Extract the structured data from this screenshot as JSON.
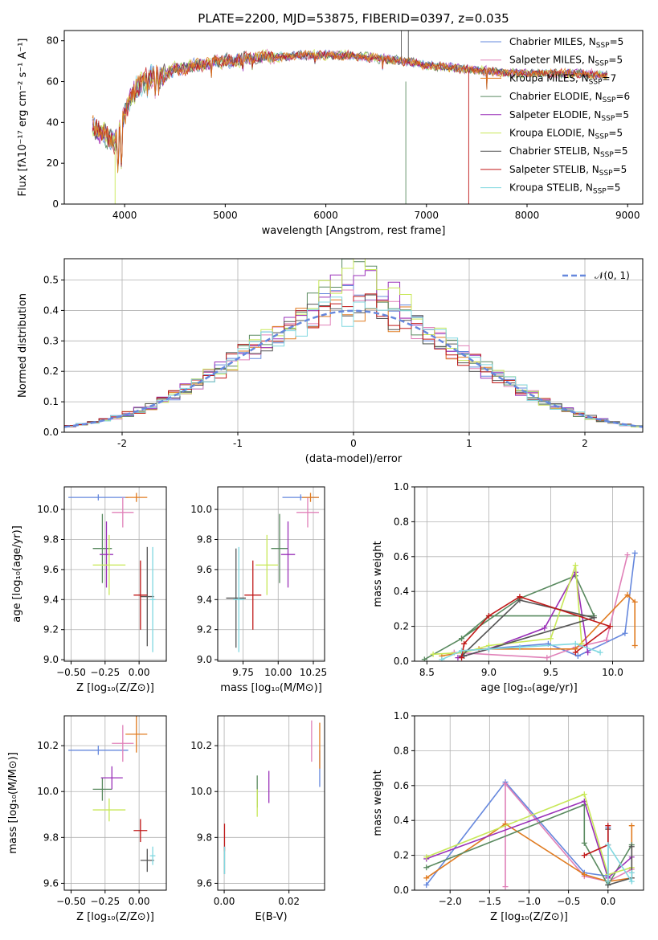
{
  "figure": {
    "title": "PLATE=2200, MJD=53875, FIBERID=0397, z=0.035"
  },
  "colors": {
    "Chabrier MILES": "#6688dd",
    "Salpeter MILES": "#e080b8",
    "Kroupa MILES": "#e07b20",
    "Chabrier ELODIE": "#5a8a60",
    "Salpeter ELODIE": "#9a30b8",
    "Kroupa ELODIE": "#c8e858",
    "Chabrier STELIB": "#555555",
    "Salpeter STELIB": "#c01818",
    "Kroupa STELIB": "#80d8e0"
  },
  "chart_data": [
    {
      "id": "spectrum",
      "type": "line",
      "xlabel": "wavelength [Angstrom, rest frame]",
      "ylabel": "Flux [fλ10⁻¹⁷ erg cm⁻² s⁻¹ A⁻¹]",
      "xlim": [
        3400,
        9150
      ],
      "ylim": [
        0,
        85
      ],
      "xticks": [
        4000,
        5000,
        6000,
        7000,
        8000,
        9000
      ],
      "yticks": [
        0,
        20,
        40,
        60,
        80
      ],
      "legend_position": "top-right",
      "legend": [
        {
          "label": "Chabrier MILES, N",
          "sub": "SSP",
          "suffix": "=5",
          "model": "Chabrier MILES"
        },
        {
          "label": "Salpeter MILES, N",
          "sub": "SSP",
          "suffix": "=5",
          "model": "Salpeter MILES"
        },
        {
          "label": "Kroupa MILES, N",
          "sub": "SSP",
          "suffix": "=7",
          "model": "Kroupa MILES"
        },
        {
          "label": "Chabrier ELODIE, N",
          "sub": "SSP",
          "suffix": "=6",
          "model": "Chabrier ELODIE"
        },
        {
          "label": "Salpeter ELODIE, N",
          "sub": "SSP",
          "suffix": "=5",
          "model": "Salpeter ELODIE"
        },
        {
          "label": "Kroupa ELODIE, N",
          "sub": "SSP",
          "suffix": "=5",
          "model": "Kroupa ELODIE"
        },
        {
          "label": "Chabrier STELIB, N",
          "sub": "SSP",
          "suffix": "=5",
          "model": "Chabrier STELIB"
        },
        {
          "label": "Salpeter STELIB, N",
          "sub": "SSP",
          "suffix": "=5",
          "model": "Salpeter STELIB"
        },
        {
          "label": "Kroupa STELIB, N",
          "sub": "SSP",
          "suffix": "=5",
          "model": "Kroupa STELIB"
        }
      ],
      "continuum": {
        "x": [
          3680,
          3800,
          3900,
          4000,
          4100,
          4200,
          4300,
          4400,
          4500,
          4600,
          4700,
          4800,
          4900,
          5000,
          5200,
          5400,
          5600,
          5800,
          6000,
          6200,
          6400,
          6600,
          6800,
          7000,
          7200,
          7400,
          7600,
          7800,
          8000,
          8200,
          8400,
          8600,
          8800
        ],
        "y": [
          38,
          34,
          30,
          44,
          56,
          60,
          64,
          63,
          66,
          66,
          68,
          68,
          70,
          70,
          71,
          72,
          72,
          73,
          73,
          73,
          72,
          71,
          70,
          68,
          67,
          66,
          65,
          64,
          64,
          64,
          64,
          64,
          63
        ]
      },
      "absorption": [
        {
          "x": 3934,
          "y": 14
        },
        {
          "x": 3969,
          "y": 16
        },
        {
          "x": 4102,
          "y": 48
        },
        {
          "x": 4227,
          "y": 52
        },
        {
          "x": 4305,
          "y": 50
        },
        {
          "x": 4340,
          "y": 52
        },
        {
          "x": 4861,
          "y": 60
        },
        {
          "x": 5175,
          "y": 62
        },
        {
          "x": 5270,
          "y": 66
        },
        {
          "x": 5895,
          "y": 66
        },
        {
          "x": 6563,
          "y": 65
        },
        {
          "x": 7600,
          "y": 58
        },
        {
          "x": 8542,
          "y": 60
        },
        {
          "x": 8662,
          "y": 60
        }
      ],
      "artifacts": [
        {
          "model": "Kroupa ELODIE",
          "x": 3905,
          "from": 30,
          "to": 0
        },
        {
          "model": "Chabrier ELODIE",
          "x": 6795,
          "from": 60,
          "to": 0
        },
        {
          "model": "Chabrier STELIB",
          "x": 6750,
          "from": 70,
          "to": 85
        },
        {
          "model": "Chabrier STELIB",
          "x": 6820,
          "from": 70,
          "to": 85
        },
        {
          "model": "Salpeter STELIB",
          "x": 7420,
          "from": 65,
          "to": 0
        }
      ]
    },
    {
      "id": "residuals",
      "type": "step",
      "xlabel": "(data-model)/error",
      "ylabel": "Normed distribution",
      "xlim": [
        -2.5,
        2.5
      ],
      "ylim": [
        0,
        0.57
      ],
      "xticks": [
        -2,
        -1,
        0,
        1,
        2
      ],
      "yticks": [
        0.0,
        0.1,
        0.2,
        0.3,
        0.4,
        0.5
      ],
      "bin_width": 0.1,
      "legend_position": "top-right",
      "legend": [
        {
          "label": "𝒩(0, 1)",
          "model": "Chabrier MILES"
        }
      ],
      "peaks": {
        "Chabrier MILES": 0.44,
        "Salpeter MILES": 0.42,
        "Kroupa MILES": 0.41,
        "Chabrier ELODIE": 0.52,
        "Salpeter ELODIE": 0.54,
        "Kroupa ELODIE": 0.53,
        "Chabrier STELIB": 0.42,
        "Salpeter STELIB": 0.43,
        "Kroupa STELIB": 0.4
      }
    },
    {
      "id": "age-Z",
      "type": "errorbar",
      "xlabel": "Z [log₁₀(Z/Z⊙)]",
      "ylabel": "age  [log₁₀(age/yr)]",
      "xlim": [
        -0.55,
        0.2
      ],
      "ylim": [
        8.99,
        10.15
      ],
      "xticks": [
        -0.5,
        -0.25,
        0.0
      ],
      "xticklabels": [
        "−0.50",
        "−0.25",
        "0.00"
      ],
      "yticks": [
        9.0,
        9.2,
        9.4,
        9.6,
        9.8,
        10.0
      ],
      "points": [
        {
          "model": "Chabrier MILES",
          "x": -0.3,
          "xerr": 0.22,
          "y": 10.08,
          "yerr": 0.02
        },
        {
          "model": "Salpeter MILES",
          "x": -0.12,
          "xerr": 0.08,
          "y": 9.98,
          "yerr": 0.1
        },
        {
          "model": "Kroupa MILES",
          "x": -0.02,
          "xerr": 0.08,
          "y": 10.08,
          "yerr": 0.03
        },
        {
          "model": "Chabrier ELODIE",
          "x": -0.27,
          "xerr": 0.07,
          "y": 9.74,
          "yerr": 0.23
        },
        {
          "model": "Salpeter ELODIE",
          "x": -0.24,
          "xerr": 0.05,
          "y": 9.7,
          "yerr": 0.22
        },
        {
          "model": "Kroupa ELODIE",
          "x": -0.22,
          "xerr": 0.12,
          "y": 9.63,
          "yerr": 0.2
        },
        {
          "model": "Chabrier STELIB",
          "x": 0.06,
          "xerr": 0.05,
          "y": 9.42,
          "yerr": 0.33
        },
        {
          "model": "Salpeter STELIB",
          "x": 0.01,
          "xerr": 0.05,
          "y": 9.43,
          "yerr": 0.23
        },
        {
          "model": "Kroupa STELIB",
          "x": 0.1,
          "xerr": 0.02,
          "y": 9.4,
          "yerr": 0.35
        }
      ]
    },
    {
      "id": "age-mass",
      "type": "errorbar",
      "xlabel": "mass [log₁₀(M/M⊙)]",
      "ylabel": "",
      "xlim": [
        9.57,
        10.33
      ],
      "ylim": [
        8.99,
        10.15
      ],
      "xticks": [
        9.75,
        10.0,
        10.25
      ],
      "xticklabels": [
        "9.75",
        "10.00",
        "10.25"
      ],
      "yticks": [
        9.0,
        9.2,
        9.4,
        9.6,
        9.8,
        10.0
      ],
      "points": [
        {
          "model": "Chabrier MILES",
          "x": 10.16,
          "xerr": 0.13,
          "y": 10.08,
          "yerr": 0.02
        },
        {
          "model": "Salpeter MILES",
          "x": 10.21,
          "xerr": 0.08,
          "y": 9.98,
          "yerr": 0.1
        },
        {
          "model": "Kroupa MILES",
          "x": 10.23,
          "xerr": 0.06,
          "y": 10.08,
          "yerr": 0.03
        },
        {
          "model": "Chabrier ELODIE",
          "x": 10.01,
          "xerr": 0.06,
          "y": 9.74,
          "yerr": 0.23
        },
        {
          "model": "Salpeter ELODIE",
          "x": 10.07,
          "xerr": 0.05,
          "y": 9.7,
          "yerr": 0.22
        },
        {
          "model": "Kroupa ELODIE",
          "x": 9.92,
          "xerr": 0.08,
          "y": 9.63,
          "yerr": 0.2
        },
        {
          "model": "Chabrier STELIB",
          "x": 9.7,
          "xerr": 0.07,
          "y": 9.41,
          "yerr": 0.33
        },
        {
          "model": "Salpeter STELIB",
          "x": 9.82,
          "xerr": 0.06,
          "y": 9.43,
          "yerr": 0.23
        },
        {
          "model": "Kroupa STELIB",
          "x": 9.72,
          "xerr": 0.04,
          "y": 9.4,
          "yerr": 0.35
        }
      ]
    },
    {
      "id": "weight-age",
      "type": "line",
      "xlabel": "age  [log₁₀(age/yr)]",
      "ylabel": "mass weight",
      "xlim": [
        8.4,
        10.25
      ],
      "ylim": [
        0,
        1.0
      ],
      "xticks": [
        8.5,
        9.0,
        9.5,
        10.0
      ],
      "xticklabels": [
        "8.5",
        "9.0",
        "9.5",
        "10.0"
      ],
      "yticks": [
        0.0,
        0.2,
        0.4,
        0.6,
        0.8,
        1.0
      ],
      "series": [
        {
          "model": "Chabrier MILES",
          "x": [
            8.78,
            9.48,
            9.72,
            10.1,
            10.18
          ],
          "y": [
            0.06,
            0.1,
            0.03,
            0.16,
            0.62
          ]
        },
        {
          "model": "Salpeter MILES",
          "x": [
            8.72,
            9.47,
            9.7,
            9.95,
            10.12
          ],
          "y": [
            0.05,
            0.02,
            0.08,
            0.12,
            0.61
          ]
        },
        {
          "model": "Kroupa MILES",
          "x": [
            8.62,
            8.92,
            9.7,
            10.12,
            10.18,
            10.18
          ],
          "y": [
            0.03,
            0.07,
            0.07,
            0.38,
            0.34,
            0.09
          ]
        },
        {
          "model": "Chabrier ELODIE",
          "x": [
            8.48,
            8.78,
            9.25,
            9.7,
            9.85,
            9.0,
            8.78
          ],
          "y": [
            0.01,
            0.13,
            0.36,
            0.49,
            0.26,
            0.26,
            0.13
          ]
        },
        {
          "model": "Salpeter ELODIE",
          "x": [
            8.75,
            9.0,
            9.45,
            9.7,
            9.8
          ],
          "y": [
            0.02,
            0.07,
            0.19,
            0.51,
            0.05
          ]
        },
        {
          "model": "Kroupa ELODIE",
          "x": [
            8.55,
            8.8,
            9.0,
            9.5,
            9.7,
            9.75
          ],
          "y": [
            0.04,
            0.05,
            0.09,
            0.13,
            0.55,
            0.1
          ]
        },
        {
          "model": "Chabrier STELIB",
          "x": [
            8.78,
            9.25,
            9.85,
            9.0,
            8.8
          ],
          "y": [
            0.03,
            0.35,
            0.25,
            0.07,
            0.03
          ]
        },
        {
          "model": "Salpeter STELIB",
          "x": [
            8.78,
            8.8,
            9.0,
            9.25,
            9.98,
            9.7
          ],
          "y": [
            0.02,
            0.1,
            0.26,
            0.37,
            0.2,
            0.05
          ]
        },
        {
          "model": "Kroupa STELIB",
          "x": [
            8.62,
            8.78,
            9.0,
            9.25,
            9.7,
            9.9
          ],
          "y": [
            0.01,
            0.06,
            0.07,
            0.08,
            0.1,
            0.05
          ]
        }
      ]
    },
    {
      "id": "mass-Z",
      "type": "errorbar",
      "xlabel": "Z [log₁₀(Z/Z⊙)]",
      "ylabel": "mass [log₁₀(M/M⊙)]",
      "xlim": [
        -0.55,
        0.2
      ],
      "ylim": [
        9.57,
        10.33
      ],
      "xticks": [
        -0.5,
        -0.25,
        0.0
      ],
      "xticklabels": [
        "−0.50",
        "−0.25",
        "0.00"
      ],
      "yticks": [
        9.6,
        9.8,
        10.0,
        10.2
      ],
      "points": [
        {
          "model": "Chabrier MILES",
          "x": -0.3,
          "xerr": 0.22,
          "y": 10.18,
          "yerr": 0.02
        },
        {
          "model": "Salpeter MILES",
          "x": -0.12,
          "xerr": 0.08,
          "y": 10.21,
          "yerr": 0.08
        },
        {
          "model": "Kroupa MILES",
          "x": -0.02,
          "xerr": 0.08,
          "y": 10.25,
          "yerr": 0.08
        },
        {
          "model": "Chabrier ELODIE",
          "x": -0.27,
          "xerr": 0.07,
          "y": 10.01,
          "yerr": 0.05
        },
        {
          "model": "Salpeter ELODIE",
          "x": -0.2,
          "xerr": 0.08,
          "y": 10.06,
          "yerr": 0.05
        },
        {
          "model": "Kroupa ELODIE",
          "x": -0.22,
          "xerr": 0.12,
          "y": 9.92,
          "yerr": 0.05
        },
        {
          "model": "Chabrier STELIB",
          "x": 0.06,
          "xerr": 0.05,
          "y": 9.7,
          "yerr": 0.05
        },
        {
          "model": "Salpeter STELIB",
          "x": 0.01,
          "xerr": 0.05,
          "y": 9.83,
          "yerr": 0.05
        },
        {
          "model": "Kroupa STELIB",
          "x": 0.1,
          "xerr": 0.02,
          "y": 9.72,
          "yerr": 0.04
        }
      ]
    },
    {
      "id": "mass-EBV",
      "type": "errorbar",
      "xlabel": "E(B-V)",
      "ylabel": "",
      "xlim": [
        -0.002,
        0.031
      ],
      "ylim": [
        9.57,
        10.33
      ],
      "xticks": [
        0.0,
        0.02
      ],
      "xticklabels": [
        "0.00",
        "0.02"
      ],
      "yticks": [
        9.6,
        9.8,
        10.0,
        10.2
      ],
      "points": [
        {
          "model": "Chabrier MILES",
          "x": 0.0295,
          "xerr": 0,
          "y": 10.1,
          "yerr": 0.08
        },
        {
          "model": "Salpeter MILES",
          "x": 0.027,
          "xerr": 0,
          "y": 10.22,
          "yerr": 0.09
        },
        {
          "model": "Kroupa MILES",
          "x": 0.0295,
          "xerr": 0,
          "y": 10.2,
          "yerr": 0.1
        },
        {
          "model": "Chabrier ELODIE",
          "x": 0.0102,
          "xerr": 0,
          "y": 10.0,
          "yerr": 0.07
        },
        {
          "model": "Salpeter ELODIE",
          "x": 0.0138,
          "xerr": 0,
          "y": 10.02,
          "yerr": 0.07
        },
        {
          "model": "Kroupa ELODIE",
          "x": 0.0102,
          "xerr": 0,
          "y": 9.95,
          "yerr": 0.06
        },
        {
          "model": "Chabrier STELIB",
          "x": 0.0001,
          "xerr": 0,
          "y": 9.7,
          "yerr": 0.06
        },
        {
          "model": "Salpeter STELIB",
          "x": 0.0001,
          "xerr": 0,
          "y": 9.8,
          "yerr": 0.06
        },
        {
          "model": "Kroupa STELIB",
          "x": 0.0001,
          "xerr": 0,
          "y": 9.7,
          "yerr": 0.06
        }
      ]
    },
    {
      "id": "weight-Z",
      "type": "line",
      "xlabel": "Z [log₁₀(Z/Z⊙)]",
      "ylabel": "mass weight",
      "xlim": [
        -2.45,
        0.45
      ],
      "ylim": [
        0,
        1.0
      ],
      "xticks": [
        -2.0,
        -1.5,
        -1.0,
        -0.5,
        0.0
      ],
      "xticklabels": [
        "−2.0",
        "−1.5",
        "−1.0",
        "−0.5",
        "0.0"
      ],
      "yticks": [
        0.0,
        0.2,
        0.4,
        0.6,
        0.8,
        1.0
      ],
      "series": [
        {
          "model": "Chabrier MILES",
          "x": [
            -2.3,
            -1.3,
            -0.3,
            0.0,
            0.0
          ],
          "y": [
            0.03,
            0.62,
            0.1,
            0.08,
            0.36
          ]
        },
        {
          "model": "Salpeter MILES",
          "x": [
            -1.3,
            -1.3,
            -0.3,
            0.0,
            0.3
          ],
          "y": [
            0.02,
            0.61,
            0.08,
            0.05,
            0.12
          ]
        },
        {
          "model": "Kroupa MILES",
          "x": [
            -2.3,
            -1.3,
            -0.3,
            0.0,
            0.3,
            0.3
          ],
          "y": [
            0.07,
            0.38,
            0.09,
            0.05,
            0.07,
            0.37
          ]
        },
        {
          "model": "Chabrier ELODIE",
          "x": [
            -2.3,
            -0.3,
            -0.3,
            0.0,
            0.3
          ],
          "y": [
            0.13,
            0.49,
            0.27,
            0.03,
            0.26
          ]
        },
        {
          "model": "Salpeter ELODIE",
          "x": [
            -2.3,
            -0.3,
            0.0,
            0.3
          ],
          "y": [
            0.18,
            0.51,
            0.07,
            0.19
          ]
        },
        {
          "model": "Kroupa ELODIE",
          "x": [
            -2.3,
            -0.3,
            0.0,
            0.3
          ],
          "y": [
            0.19,
            0.55,
            0.09,
            0.13
          ]
        },
        {
          "model": "Chabrier STELIB",
          "x": [
            0.0,
            0.0,
            0.3,
            0.3
          ],
          "y": [
            0.35,
            0.03,
            0.07,
            0.25
          ]
        },
        {
          "model": "Salpeter STELIB",
          "x": [
            -0.3,
            0.0,
            0.0
          ],
          "y": [
            0.2,
            0.26,
            0.37
          ]
        },
        {
          "model": "Kroupa STELIB",
          "x": [
            0.0,
            0.0,
            0.3,
            0.3
          ],
          "y": [
            0.05,
            0.26,
            0.05,
            0.1
          ]
        }
      ]
    }
  ]
}
